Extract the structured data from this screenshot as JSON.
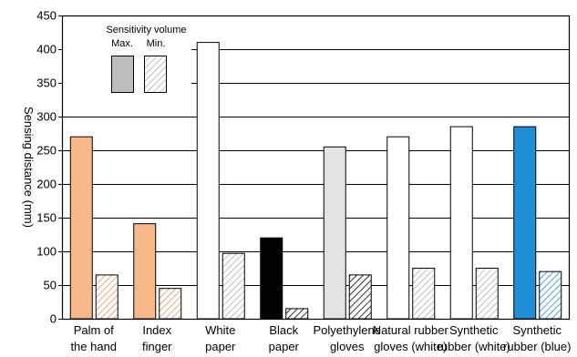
{
  "chart_data": {
    "type": "bar",
    "categories": [
      [
        "Palm of",
        "the hand"
      ],
      [
        "Index",
        "finger"
      ],
      [
        "White",
        "paper"
      ],
      [
        "Black",
        "paper"
      ],
      [
        "Polyethylene",
        "gloves"
      ],
      [
        "Natural rubber",
        "gloves (white)"
      ],
      [
        "Synthetic",
        "rubber (white)"
      ],
      [
        "Synthetic",
        "rubber (blue)"
      ]
    ],
    "series": [
      {
        "name": "Max.",
        "values": [
          270,
          141,
          410,
          120,
          255,
          270,
          285,
          285
        ]
      },
      {
        "name": "Min.",
        "values": [
          65,
          45,
          97,
          15,
          65,
          75,
          75,
          70
        ]
      }
    ],
    "max_fill_colors": [
      "#f8b98a",
      "#f8b98a",
      "#ffffff",
      "#000000",
      "#e2e4e3",
      "#ffffff",
      "#ffffff",
      "#1f8fd6"
    ],
    "min_hatch_colors": [
      "#e8915a",
      "#e8915a",
      "#b0b0b0",
      "#000000",
      "#000000",
      "#b0b0b0",
      "#b0b0b0",
      "#1f8fd6"
    ],
    "ylabel": "Sensing distance (mm)",
    "ylim": [
      0,
      450
    ],
    "yticks": [
      0,
      50,
      100,
      150,
      200,
      250,
      300,
      350,
      400,
      450
    ],
    "grid": true,
    "legend": {
      "title": "Sensitivity volume",
      "max_label": "Max.",
      "min_label": "Min.",
      "max_color": "#bdbdbd",
      "min_color": "#b0b0b0",
      "placement": "top-left"
    }
  }
}
